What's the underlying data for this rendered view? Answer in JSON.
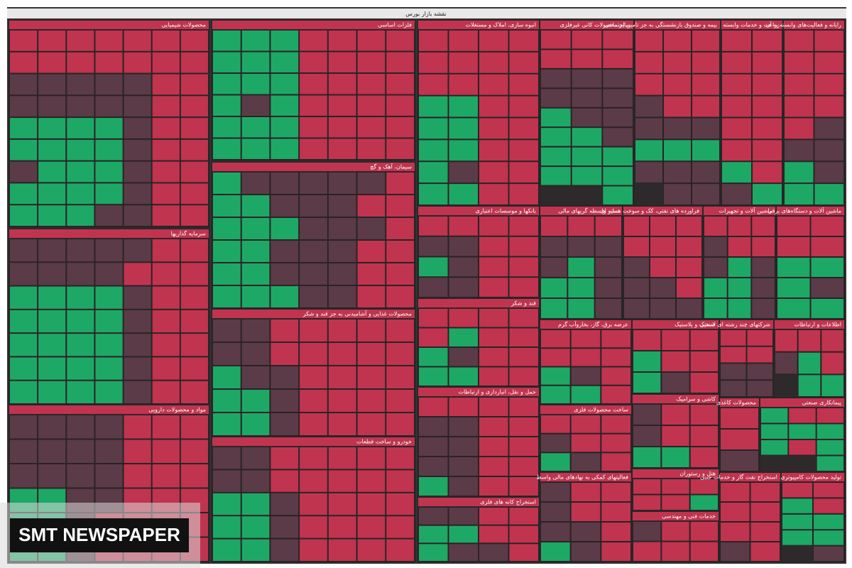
{
  "header": {
    "title": "نقشه بازار بورس"
  },
  "palette": {
    "r": "#c0344f",
    "d": "#5b3b47",
    "g": "#1ea866"
  },
  "sectors": [
    {
      "title": "محصولات شیمیایی",
      "tiles": "rrrrrrrrrrrrrrrrdddddrrdddddrrdggggrrdggggrrdgggdrrdggggrrddggg"
    },
    {
      "title": "فلزات اساسی",
      "tiles": "rrrrgggrrrrgggrrrrgggrrrrgdgrrrrgggrrrrggg"
    },
    {
      "title": "انبوه سازی، املاک و مستغلات",
      "tiles": "rrrrrrrrrrrrrrggrrggrrggrrdgrrgg"
    },
    {
      "title": "سایر محصولات کانی غیرفلزی",
      "tiles": "rrrrrrddddddddgdggggggggg"
    },
    {
      "title": "بیمه و صندوق بازنشستگی به جز تامین اجتماعی",
      "tiles": "rrrrrrrrrrrddddgggddddd"
    },
    {
      "title": "زراعت و خدمات وابسته",
      "tiles": "rrrrrrrrrrrrrggd"
    },
    {
      "title": "رایانه و فعالیت‌های وابسته به آن",
      "tiles": "rrrrrrrrdrdddggg"
    },
    {
      "title": "سرمایه گذاریها",
      "tiles": "rrdddddrrrddddrrdggggrrdggggrrdggggrrdggggrrdgggg"
    },
    {
      "title": "مواد و محصولات دارویی",
      "tiles": "rrrddddrrrddddrrrddddrrrddggrrrrdggrrrrdgg"
    },
    {
      "title": "سیمان، آهک و گچ",
      "tiles": "rdddddgrrdddggrdddgggrrdddggrrdddggrrddggg"
    },
    {
      "title": "محصولات غذایی و آشامیدنی به جز قند و شکر",
      "tiles": "rrrrrddrrrrrddrrrrddgrrrrdggrrrrdgg"
    },
    {
      "title": "خودرو و ساخت قطعات",
      "tiles": "rrrrrddrrrrrddrrrrdggrrrrdggrrrrdgg"
    },
    {
      "title": "بانکها و موسسات اعتباری",
      "tiles": "rrrrrrddrrdgrrdd"
    },
    {
      "title": "قند و شکر",
      "tiles": "rrrrrrgrrrdgrrgg"
    },
    {
      "title": "حمل و نقل، انبارداری و ارتباطات",
      "tiles": "rrrrrrddrrddrrddrrdg"
    },
    {
      "title": "استخراج کانه های فلزی",
      "tiles": "rrddrrggrddg"
    },
    {
      "title": "سایر واسطه گریهای مالی",
      "tiles": "rrrddddgddggdgg"
    },
    {
      "title": "فراورده های نفتی، کک و سوخت هسته ای",
      "tiles": "rrrrrrrrdrddddd"
    },
    {
      "title": "ماشین آلات و تجهیزات",
      "tiles": "rrrrrddgddggdgg"
    },
    {
      "title": "ماشین آلات و دستگاه‌های برقی",
      "tiles": "rrrrggdggg"
    },
    {
      "title": "عرضه برق، گاز، بخاروآب گرم",
      "tiles": "rrrrrrrdgrgg"
    },
    {
      "title": "لاستیک و پلاستیک",
      "tiles": "rrrrrgrdg"
    },
    {
      "title": "شرکتهای چند رشته ای صنعتی",
      "tiles": "rrrrdddd"
    },
    {
      "title": "اطلاعات و ارتباطات",
      "tiles": "rrrrgdgg"
    },
    {
      "title": "ساخت محصولات فلزی",
      "tiles": "rrrrrdrdg"
    },
    {
      "title": "کاشی و سرامیک",
      "tiles": "rrdrrdrgg"
    },
    {
      "title": "محصولات کاغذی",
      "tiles": "rrd"
    },
    {
      "title": "پیمانکاری صنعتی",
      "tiles": "rrgggggrgg"
    },
    {
      "title": "فعالیتهای کمکی به نهادهای مالی واسط",
      "tiles": "rrdrrdrddrdg"
    },
    {
      "title": "هتل و رستوران",
      "tiles": "rrrgrr"
    },
    {
      "title": "خدمات فنی و مهندسی",
      "tiles": "rrdrrr"
    },
    {
      "title": "استخراج نفت گاز و خدمات جنبی",
      "tiles": "rrrrrrrd"
    },
    {
      "title": "تولید محصولات کامپیوتری",
      "tiles": "rrrgggggd"
    }
  ],
  "watermark": "SMT NEWSPAPER"
}
